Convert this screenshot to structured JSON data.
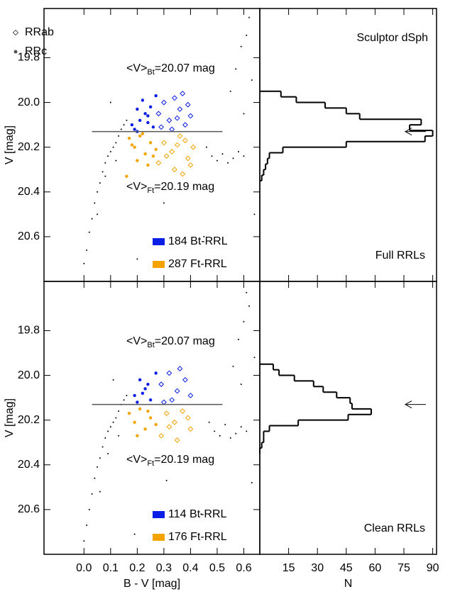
{
  "chart_data": [
    {
      "type": "scatter",
      "ylabel": "V [mag]",
      "ylim": [
        19.58,
        20.8
      ],
      "xlim": [
        -0.15,
        0.66
      ],
      "yticks": [
        19.8,
        {
          "value": 20,
          "label": "20.0"
        },
        20.2,
        20.4,
        20.6
      ],
      "xticks": [
        {
          "value": 0,
          "label": "0.0"
        },
        0.1,
        0.2,
        0.3,
        0.4,
        0.5,
        0.6
      ],
      "markers": [
        {
          "name": "RRab",
          "color": "#555555"
        },
        {
          "name": "RRc",
          "color": "#555555"
        }
      ],
      "annotations": [
        [
          "<V>",
          "Bt",
          "=20.07 mag"
        ],
        [
          "<V>",
          "Ft",
          "=20.19 mag"
        ]
      ],
      "mean_line": {
        "y": 20.13,
        "x": [
          0.03,
          0.52
        ]
      },
      "field": {
        "color": "#000000",
        "x": [
          0.0,
          0.01,
          0.02,
          0.03,
          0.04,
          0.05,
          0.06,
          0.07,
          0.08,
          0.09,
          0.1,
          0.11,
          0.12,
          0.13,
          0.14,
          0.15,
          0.16,
          0.05,
          0.08,
          0.12,
          0.46,
          0.48,
          0.5,
          0.52,
          0.54,
          0.56,
          0.58,
          0.6,
          0.55,
          0.57,
          0.59,
          0.61,
          0.62,
          0.63,
          0.6,
          0.64,
          0.45,
          0.3,
          0.2,
          0.1
        ],
        "y": [
          20.72,
          20.66,
          20.58,
          20.52,
          20.45,
          20.4,
          20.36,
          20.31,
          20.27,
          20.24,
          20.22,
          20.2,
          20.18,
          20.15,
          20.12,
          20.1,
          20.08,
          20.5,
          20.33,
          20.26,
          20.2,
          20.24,
          20.26,
          20.23,
          20.27,
          20.25,
          20.22,
          20.24,
          19.95,
          19.85,
          19.75,
          19.7,
          19.62,
          19.9,
          20.05,
          20.5,
          20.6,
          20.45,
          20.7,
          20.0
        ]
      },
      "series": [
        {
          "name": "184 Bt-RRL",
          "color": "#0a1ee6",
          "rrab_x": [
            0.28,
            0.3,
            0.32,
            0.34,
            0.36,
            0.38,
            0.4,
            0.33,
            0.37,
            0.29,
            0.35,
            0.39
          ],
          "rrab_y": [
            20.05,
            20.0,
            20.08,
            19.98,
            20.03,
            20.1,
            20.06,
            20.12,
            19.96,
            20.11,
            20.07,
            20.01
          ],
          "rrc_x": [
            0.18,
            0.2,
            0.22,
            0.24,
            0.26,
            0.21,
            0.25,
            0.19,
            0.23,
            0.27,
            0.2,
            0.24
          ],
          "rrc_y": [
            20.1,
            20.03,
            19.99,
            20.06,
            20.11,
            20.08,
            20.02,
            20.12,
            20.05,
            19.97,
            20.13,
            20.09
          ]
        },
        {
          "name": "287 Ft-RRL",
          "color": "#f5a300",
          "rrab_x": [
            0.3,
            0.33,
            0.36,
            0.39,
            0.41,
            0.28,
            0.34,
            0.38,
            0.31,
            0.4,
            0.35,
            0.37
          ],
          "rrab_y": [
            20.18,
            20.22,
            20.15,
            20.25,
            20.2,
            20.27,
            20.3,
            20.17,
            20.24,
            20.28,
            20.19,
            20.32
          ],
          "rrc_x": [
            0.17,
            0.19,
            0.21,
            0.23,
            0.25,
            0.27,
            0.2,
            0.24,
            0.18,
            0.22,
            0.26,
            0.16
          ],
          "rrc_y": [
            20.16,
            20.2,
            20.15,
            20.23,
            20.18,
            20.21,
            20.26,
            20.28,
            20.19,
            20.14,
            20.24,
            20.33
          ]
        }
      ]
    },
    {
      "type": "histogram",
      "title": "Sculptor dSph",
      "label": "Full RRLs",
      "ylim": [
        19.58,
        20.8
      ],
      "xlim": [
        0,
        92
      ],
      "xticks": [
        15,
        30,
        45,
        60,
        75,
        90
      ],
      "bins": [
        19.95,
        19.975,
        20.0,
        20.025,
        20.05,
        20.075,
        20.1,
        20.125,
        20.15,
        20.175,
        20.2,
        20.225,
        20.25,
        20.275,
        20.3,
        20.325,
        20.35
      ],
      "counts": [
        11,
        19,
        34,
        45,
        52,
        84,
        78,
        90,
        86,
        45,
        12,
        5,
        4,
        3,
        2,
        1
      ],
      "arrow": {
        "y": 20.13
      }
    },
    {
      "type": "scatter",
      "ylabel": "V [mag]",
      "xlabel": "B - V [mag]",
      "ylim": [
        19.58,
        20.8
      ],
      "xlim": [
        -0.15,
        0.66
      ],
      "yticks": [
        19.8,
        {
          "value": 20,
          "label": "20.0"
        },
        20.2,
        20.4,
        20.6
      ],
      "xticks": [
        {
          "value": 0,
          "label": "0.0"
        },
        0.1,
        0.2,
        0.3,
        0.4,
        0.5,
        0.6
      ],
      "annotations": [
        [
          "<V>",
          "Bt",
          "=20.07 mag"
        ],
        [
          "<V>",
          "Ft",
          "=20.19 mag"
        ]
      ],
      "mean_line": {
        "y": 20.13,
        "x": [
          0.03,
          0.52
        ]
      },
      "field": {
        "color": "#000000",
        "x": [
          0.0,
          0.01,
          0.02,
          0.03,
          0.04,
          0.05,
          0.06,
          0.07,
          0.08,
          0.09,
          0.1,
          0.11,
          0.12,
          0.13,
          0.14,
          0.15,
          0.16,
          0.06,
          0.09,
          0.13,
          0.47,
          0.49,
          0.51,
          0.53,
          0.55,
          0.57,
          0.59,
          0.61,
          0.56,
          0.58,
          0.6,
          0.62,
          0.61,
          0.64,
          0.59,
          0.63,
          0.44,
          0.31,
          0.19,
          0.11
        ],
        "y": [
          20.74,
          20.67,
          20.6,
          20.53,
          20.46,
          20.41,
          20.37,
          20.32,
          20.28,
          20.25,
          20.23,
          20.21,
          20.19,
          20.16,
          20.13,
          20.11,
          20.09,
          20.52,
          20.35,
          20.27,
          20.21,
          20.25,
          20.27,
          20.22,
          20.28,
          20.26,
          20.23,
          20.25,
          19.96,
          19.84,
          19.76,
          19.69,
          19.63,
          19.92,
          20.04,
          20.48,
          20.62,
          20.47,
          20.71,
          20.02
        ]
      },
      "series": [
        {
          "name": "114 Bt-RRL",
          "color": "#0a1ee6",
          "rrab_x": [
            0.29,
            0.32,
            0.35,
            0.38,
            0.4,
            0.33,
            0.36,
            0.3
          ],
          "rrab_y": [
            20.04,
            19.99,
            20.07,
            20.02,
            20.09,
            20.11,
            19.97,
            20.12
          ],
          "rrc_x": [
            0.19,
            0.21,
            0.23,
            0.25,
            0.27,
            0.2,
            0.24,
            0.22
          ],
          "rrc_y": [
            20.09,
            20.02,
            20.06,
            20.11,
            19.99,
            20.12,
            20.04,
            20.08
          ]
        },
        {
          "name": "176 Ft-RRL",
          "color": "#f5a300",
          "rrab_x": [
            0.31,
            0.34,
            0.37,
            0.4,
            0.29,
            0.35,
            0.39,
            0.32
          ],
          "rrab_y": [
            20.17,
            20.21,
            20.16,
            20.24,
            20.27,
            20.29,
            20.19,
            20.23
          ],
          "rrc_x": [
            0.17,
            0.19,
            0.21,
            0.23,
            0.25,
            0.27,
            0.2,
            0.24
          ],
          "rrc_y": [
            20.17,
            20.21,
            20.15,
            20.24,
            20.19,
            20.22,
            20.27,
            20.16
          ]
        }
      ]
    },
    {
      "type": "histogram",
      "xlabel": "N",
      "label": "Clean RRLs",
      "ylim": [
        19.58,
        20.8
      ],
      "xlim": [
        0,
        92
      ],
      "xticks": [
        15,
        30,
        45,
        60,
        75,
        90
      ],
      "bins": [
        19.95,
        19.975,
        20.0,
        20.025,
        20.05,
        20.075,
        20.1,
        20.125,
        20.15,
        20.175,
        20.2,
        20.225,
        20.25,
        20.275,
        20.3,
        20.325,
        20.35
      ],
      "counts": [
        7,
        10,
        18,
        28,
        33,
        40,
        47,
        48,
        58,
        46,
        20,
        5,
        2,
        2,
        1,
        0
      ],
      "arrow": {
        "y": 20.13
      }
    }
  ]
}
